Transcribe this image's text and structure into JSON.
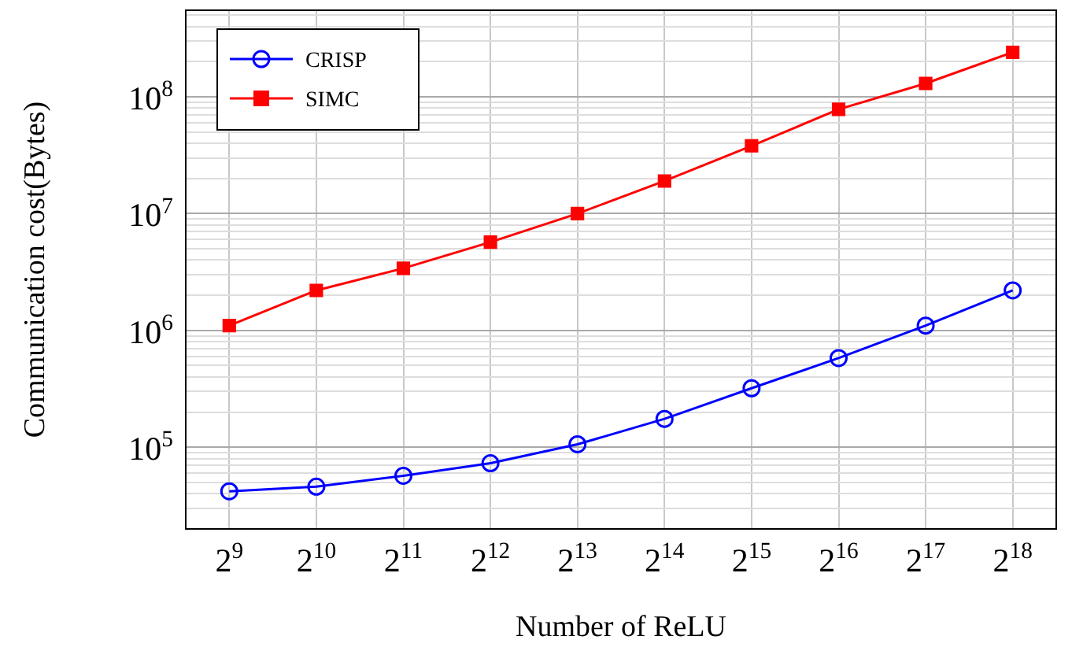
{
  "chart_data": {
    "type": "line",
    "xlabel": "Number of ReLU",
    "ylabel": "Communication cost(Bytes)",
    "categories": [
      "2$^{9}$",
      "2$^{10}$",
      "2$^{11}$",
      "2$^{12}$",
      "2$^{13}$",
      "2$^{14}$",
      "2$^{15}$",
      "2$^{16}$",
      "2$^{17}$",
      "2$^{18}$"
    ],
    "series": [
      {
        "name": "CRISP",
        "color": "#0000ff",
        "marker": "circle",
        "values": [
          42000,
          46000,
          57000,
          73000,
          106000,
          175000,
          320000,
          580000,
          1100000,
          2200000
        ]
      },
      {
        "name": "SIMC",
        "color": "#ff0000",
        "marker": "square",
        "values": [
          1100000,
          2200000,
          3400000,
          5700000,
          10000000,
          19000000,
          38000000,
          78000000,
          130000000,
          240000000
        ]
      }
    ],
    "log": "y",
    "ylim": [
      20000,
      550000000
    ],
    "yticks": [
      {
        "value": 20000,
        "label": null
      },
      {
        "value": 30000,
        "label": null
      },
      {
        "value": 40000,
        "label": null
      },
      {
        "value": 50000,
        "label": null
      },
      {
        "value": 60000,
        "label": null
      },
      {
        "value": 70000,
        "label": null
      },
      {
        "value": 80000,
        "label": null
      },
      {
        "value": 90000,
        "label": null
      },
      {
        "value": 100000,
        "label": "10$^{5}$"
      },
      {
        "value": 200000,
        "label": null
      },
      {
        "value": 300000,
        "label": null
      },
      {
        "value": 400000,
        "label": null
      },
      {
        "value": 500000,
        "label": null
      },
      {
        "value": 600000,
        "label": null
      },
      {
        "value": 700000,
        "label": null
      },
      {
        "value": 800000,
        "label": null
      },
      {
        "value": 900000,
        "label": null
      },
      {
        "value": 1000000,
        "label": "10$^{6}$"
      },
      {
        "value": 2000000,
        "label": null
      },
      {
        "value": 3000000,
        "label": null
      },
      {
        "value": 4000000,
        "label": null
      },
      {
        "value": 5000000,
        "label": null
      },
      {
        "value": 6000000,
        "label": null
      },
      {
        "value": 7000000,
        "label": null
      },
      {
        "value": 8000000,
        "label": null
      },
      {
        "value": 9000000,
        "label": null
      },
      {
        "value": 10000000,
        "label": "10$^{7}$"
      },
      {
        "value": 20000000,
        "label": null
      },
      {
        "value": 30000000,
        "label": null
      },
      {
        "value": 40000000,
        "label": null
      },
      {
        "value": 50000000,
        "label": null
      },
      {
        "value": 60000000,
        "label": null
      },
      {
        "value": 70000000,
        "label": null
      },
      {
        "value": 80000000,
        "label": null
      },
      {
        "value": 90000000,
        "label": null
      },
      {
        "value": 100000000,
        "label": "10$^{8}$"
      },
      {
        "value": 200000000,
        "label": null
      },
      {
        "value": 300000000,
        "label": null
      },
      {
        "value": 400000000,
        "label": null
      },
      {
        "value": 500000000,
        "label": null
      }
    ],
    "grid": true,
    "legend": "top left",
    "line_style": "solid"
  }
}
